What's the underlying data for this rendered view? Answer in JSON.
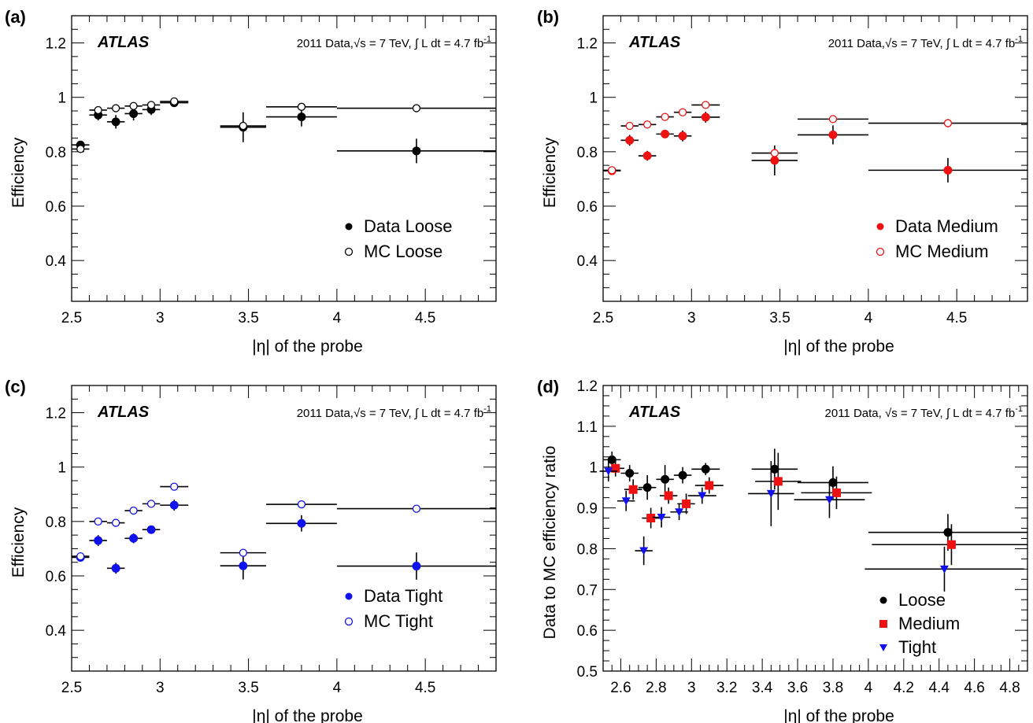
{
  "panels": [
    {
      "panel_label": "(a)",
      "brand": "ATLAS",
      "info": {
        "pre": "2011 Data,",
        "sqrt": "s",
        "mid": "= 7 TeV,",
        "int": "L dt = 4.7 fb",
        "sup": "-1"
      },
      "xlabel": "|η| of the probe",
      "ylabel": "Efficiency",
      "legend": [
        "Data Loose",
        "MC Loose"
      ]
    },
    {
      "panel_label": "(b)",
      "brand": "ATLAS",
      "info": {
        "pre": "2011 Data,",
        "sqrt": "s",
        "mid": "= 7 TeV,",
        "int": "L dt = 4.7 fb",
        "sup": "-1"
      },
      "xlabel": "|η| of the probe",
      "ylabel": "Efficiency",
      "legend": [
        "Data Medium",
        "MC Medium"
      ]
    },
    {
      "panel_label": "(c)",
      "brand": "ATLAS",
      "info": {
        "pre": "2011 Data,",
        "sqrt": "s",
        "mid": "= 7 TeV,",
        "int": "L dt = 4.7 fb",
        "sup": "-1"
      },
      "xlabel": "|η| of the probe",
      "ylabel": "Efficiency",
      "legend": [
        "Data Tight",
        "MC Tight"
      ]
    },
    {
      "panel_label": "(d)",
      "brand": "ATLAS",
      "info": {
        "pre": "2011 Data,",
        "sqrt": "s",
        "mid": "= 7 TeV,",
        "int": "L dt = 4.7 fb",
        "sup": "-1"
      },
      "xlabel": "|η| of the probe",
      "ylabel": "Data to MC efficiency ratio",
      "legend": [
        "Loose",
        "Medium",
        "Tight"
      ]
    }
  ],
  "chart_data": [
    {
      "type": "scatter",
      "xlim": [
        2.5,
        4.9
      ],
      "ylim": [
        0.25,
        1.3
      ],
      "xticks": [
        2.5,
        3,
        3.5,
        4,
        4.5
      ],
      "yticks": [
        0.4,
        0.6,
        0.8,
        1,
        1.2
      ],
      "legend_position": "bottom-right",
      "series": [
        {
          "name": "Data Loose",
          "color": "#000000",
          "marker": "filled-circle",
          "points": [
            {
              "x": 2.55,
              "xerr": 0.05,
              "y": 0.825,
              "yerr": 0.015
            },
            {
              "x": 2.65,
              "xerr": 0.05,
              "y": 0.935,
              "yerr": 0.02
            },
            {
              "x": 2.75,
              "xerr": 0.05,
              "y": 0.91,
              "yerr": 0.025
            },
            {
              "x": 2.85,
              "xerr": 0.05,
              "y": 0.94,
              "yerr": 0.025
            },
            {
              "x": 2.95,
              "xerr": 0.05,
              "y": 0.955,
              "yerr": 0.02
            },
            {
              "x": 3.08,
              "xerr": 0.08,
              "y": 0.98,
              "yerr": 0.01
            },
            {
              "x": 3.47,
              "xerr": 0.13,
              "y": 0.89,
              "yerr": 0.055
            },
            {
              "x": 3.8,
              "xerr": 0.2,
              "y": 0.928,
              "yerr": 0.035
            },
            {
              "x": 4.45,
              "xerr": 0.45,
              "y": 0.803,
              "yerr": 0.045
            }
          ]
        },
        {
          "name": "MC Loose",
          "color": "#000000",
          "marker": "open-circle",
          "points": [
            {
              "x": 2.55,
              "xerr": 0.05,
              "y": 0.81,
              "yerr": 0.01
            },
            {
              "x": 2.65,
              "xerr": 0.05,
              "y": 0.953,
              "yerr": 0.005
            },
            {
              "x": 2.75,
              "xerr": 0.05,
              "y": 0.96,
              "yerr": 0.005
            },
            {
              "x": 2.85,
              "xerr": 0.05,
              "y": 0.968,
              "yerr": 0.005
            },
            {
              "x": 2.95,
              "xerr": 0.05,
              "y": 0.972,
              "yerr": 0.005
            },
            {
              "x": 3.08,
              "xerr": 0.08,
              "y": 0.985,
              "yerr": 0.003
            },
            {
              "x": 3.47,
              "xerr": 0.13,
              "y": 0.895,
              "yerr": 0.005
            },
            {
              "x": 3.8,
              "xerr": 0.2,
              "y": 0.965,
              "yerr": 0.005
            },
            {
              "x": 4.45,
              "xerr": 0.45,
              "y": 0.96,
              "yerr": 0.01
            }
          ]
        }
      ]
    },
    {
      "type": "scatter",
      "xlim": [
        2.5,
        4.9
      ],
      "ylim": [
        0.25,
        1.3
      ],
      "xticks": [
        2.5,
        3,
        3.5,
        4,
        4.5
      ],
      "yticks": [
        0.4,
        0.6,
        0.8,
        1,
        1.2
      ],
      "legend_position": "bottom-right",
      "series": [
        {
          "name": "Data Medium",
          "color": "#ee1111",
          "marker": "filled-circle",
          "points": [
            {
              "x": 2.55,
              "xerr": 0.05,
              "y": 0.73,
              "yerr": 0.015
            },
            {
              "x": 2.65,
              "xerr": 0.05,
              "y": 0.842,
              "yerr": 0.02
            },
            {
              "x": 2.75,
              "xerr": 0.05,
              "y": 0.785,
              "yerr": 0.018
            },
            {
              "x": 2.85,
              "xerr": 0.05,
              "y": 0.865,
              "yerr": 0.015
            },
            {
              "x": 2.95,
              "xerr": 0.05,
              "y": 0.858,
              "yerr": 0.02
            },
            {
              "x": 3.08,
              "xerr": 0.08,
              "y": 0.927,
              "yerr": 0.02
            },
            {
              "x": 3.47,
              "xerr": 0.13,
              "y": 0.768,
              "yerr": 0.055
            },
            {
              "x": 3.8,
              "xerr": 0.2,
              "y": 0.862,
              "yerr": 0.035
            },
            {
              "x": 4.45,
              "xerr": 0.45,
              "y": 0.732,
              "yerr": 0.045
            }
          ]
        },
        {
          "name": "MC Medium",
          "color": "#ee1111",
          "marker": "open-circle",
          "points": [
            {
              "x": 2.55,
              "xerr": 0.05,
              "y": 0.732,
              "yerr": 0.005
            },
            {
              "x": 2.65,
              "xerr": 0.05,
              "y": 0.895,
              "yerr": 0.005
            },
            {
              "x": 2.75,
              "xerr": 0.05,
              "y": 0.9,
              "yerr": 0.005
            },
            {
              "x": 2.85,
              "xerr": 0.05,
              "y": 0.928,
              "yerr": 0.005
            },
            {
              "x": 2.95,
              "xerr": 0.05,
              "y": 0.945,
              "yerr": 0.005
            },
            {
              "x": 3.08,
              "xerr": 0.08,
              "y": 0.972,
              "yerr": 0.003
            },
            {
              "x": 3.47,
              "xerr": 0.13,
              "y": 0.795,
              "yerr": 0.008
            },
            {
              "x": 3.8,
              "xerr": 0.2,
              "y": 0.92,
              "yerr": 0.005
            },
            {
              "x": 4.45,
              "xerr": 0.45,
              "y": 0.905,
              "yerr": 0.015
            }
          ]
        }
      ]
    },
    {
      "type": "scatter",
      "xlim": [
        2.5,
        4.9
      ],
      "ylim": [
        0.25,
        1.3
      ],
      "xticks": [
        2.5,
        3,
        3.5,
        4,
        4.5
      ],
      "yticks": [
        0.4,
        0.6,
        0.8,
        1,
        1.2
      ],
      "legend_position": "bottom-right",
      "series": [
        {
          "name": "Data Tight",
          "color": "#1111ee",
          "marker": "filled-circle",
          "points": [
            {
              "x": 2.55,
              "xerr": 0.05,
              "y": 0.668,
              "yerr": 0.015
            },
            {
              "x": 2.65,
              "xerr": 0.05,
              "y": 0.73,
              "yerr": 0.02
            },
            {
              "x": 2.75,
              "xerr": 0.05,
              "y": 0.628,
              "yerr": 0.02
            },
            {
              "x": 2.85,
              "xerr": 0.05,
              "y": 0.738,
              "yerr": 0.018
            },
            {
              "x": 2.95,
              "xerr": 0.05,
              "y": 0.77,
              "yerr": 0.015
            },
            {
              "x": 3.08,
              "xerr": 0.08,
              "y": 0.86,
              "yerr": 0.02
            },
            {
              "x": 3.47,
              "xerr": 0.13,
              "y": 0.637,
              "yerr": 0.05
            },
            {
              "x": 3.8,
              "xerr": 0.2,
              "y": 0.793,
              "yerr": 0.03
            },
            {
              "x": 4.45,
              "xerr": 0.45,
              "y": 0.636,
              "yerr": 0.05
            }
          ]
        },
        {
          "name": "MC Tight",
          "color": "#1111ee",
          "marker": "open-circle",
          "points": [
            {
              "x": 2.55,
              "xerr": 0.05,
              "y": 0.672,
              "yerr": 0.005
            },
            {
              "x": 2.65,
              "xerr": 0.05,
              "y": 0.8,
              "yerr": 0.005
            },
            {
              "x": 2.75,
              "xerr": 0.05,
              "y": 0.795,
              "yerr": 0.005
            },
            {
              "x": 2.85,
              "xerr": 0.05,
              "y": 0.84,
              "yerr": 0.005
            },
            {
              "x": 2.95,
              "xerr": 0.05,
              "y": 0.865,
              "yerr": 0.005
            },
            {
              "x": 3.08,
              "xerr": 0.08,
              "y": 0.928,
              "yerr": 0.003
            },
            {
              "x": 3.47,
              "xerr": 0.13,
              "y": 0.685,
              "yerr": 0.008
            },
            {
              "x": 3.8,
              "xerr": 0.2,
              "y": 0.863,
              "yerr": 0.005
            },
            {
              "x": 4.45,
              "xerr": 0.45,
              "y": 0.847,
              "yerr": 0.012
            }
          ]
        }
      ]
    },
    {
      "type": "scatter",
      "xlim": [
        2.5,
        4.9
      ],
      "ylim": [
        0.5,
        1.2
      ],
      "xticks": [
        2.6,
        2.8,
        3,
        3.2,
        3.4,
        3.6,
        3.8,
        4,
        4.2,
        4.4,
        4.6,
        4.8
      ],
      "yticks": [
        0.5,
        0.6,
        0.7,
        0.8,
        0.9,
        1,
        1.1,
        1.2
      ],
      "legend_position": "bottom-right",
      "series": [
        {
          "name": "Loose",
          "color": "#000000",
          "marker": "filled-circle",
          "points": [
            {
              "x": 2.55,
              "xerr": 0.05,
              "y": 1.018,
              "yerr": 0.02
            },
            {
              "x": 2.65,
              "xerr": 0.05,
              "y": 0.985,
              "yerr": 0.02
            },
            {
              "x": 2.75,
              "xerr": 0.05,
              "y": 0.95,
              "yerr": 0.03
            },
            {
              "x": 2.85,
              "xerr": 0.05,
              "y": 0.97,
              "yerr": 0.035
            },
            {
              "x": 2.95,
              "xerr": 0.05,
              "y": 0.98,
              "yerr": 0.02
            },
            {
              "x": 3.08,
              "xerr": 0.08,
              "y": 0.995,
              "yerr": 0.015
            },
            {
              "x": 3.47,
              "xerr": 0.13,
              "y": 0.995,
              "yerr": 0.05
            },
            {
              "x": 3.8,
              "xerr": 0.2,
              "y": 0.962,
              "yerr": 0.04
            },
            {
              "x": 4.45,
              "xerr": 0.45,
              "y": 0.84,
              "yerr": 0.045
            }
          ]
        },
        {
          "name": "Medium",
          "color": "#ee1111",
          "marker": "filled-square",
          "points": [
            {
              "x": 2.57,
              "xerr": 0.05,
              "y": 0.997,
              "yerr": 0.02
            },
            {
              "x": 2.67,
              "xerr": 0.05,
              "y": 0.945,
              "yerr": 0.025
            },
            {
              "x": 2.77,
              "xerr": 0.05,
              "y": 0.875,
              "yerr": 0.025
            },
            {
              "x": 2.87,
              "xerr": 0.05,
              "y": 0.93,
              "yerr": 0.02
            },
            {
              "x": 2.97,
              "xerr": 0.05,
              "y": 0.91,
              "yerr": 0.025
            },
            {
              "x": 3.1,
              "xerr": 0.08,
              "y": 0.955,
              "yerr": 0.02
            },
            {
              "x": 3.49,
              "xerr": 0.13,
              "y": 0.965,
              "yerr": 0.07
            },
            {
              "x": 3.82,
              "xerr": 0.2,
              "y": 0.937,
              "yerr": 0.04
            },
            {
              "x": 4.47,
              "xerr": 0.45,
              "y": 0.81,
              "yerr": 0.05
            }
          ]
        },
        {
          "name": "Tight",
          "color": "#1111ee",
          "marker": "triangle-down",
          "points": [
            {
              "x": 2.53,
              "xerr": 0.05,
              "y": 0.99,
              "yerr": 0.025
            },
            {
              "x": 2.63,
              "xerr": 0.05,
              "y": 0.917,
              "yerr": 0.025
            },
            {
              "x": 2.73,
              "xerr": 0.05,
              "y": 0.795,
              "yerr": 0.035
            },
            {
              "x": 2.83,
              "xerr": 0.05,
              "y": 0.877,
              "yerr": 0.025
            },
            {
              "x": 2.93,
              "xerr": 0.05,
              "y": 0.89,
              "yerr": 0.02
            },
            {
              "x": 3.06,
              "xerr": 0.08,
              "y": 0.93,
              "yerr": 0.02
            },
            {
              "x": 3.45,
              "xerr": 0.13,
              "y": 0.935,
              "yerr": 0.08
            },
            {
              "x": 3.78,
              "xerr": 0.2,
              "y": 0.92,
              "yerr": 0.045
            },
            {
              "x": 4.43,
              "xerr": 0.45,
              "y": 0.75,
              "yerr": 0.055
            }
          ]
        }
      ]
    }
  ]
}
